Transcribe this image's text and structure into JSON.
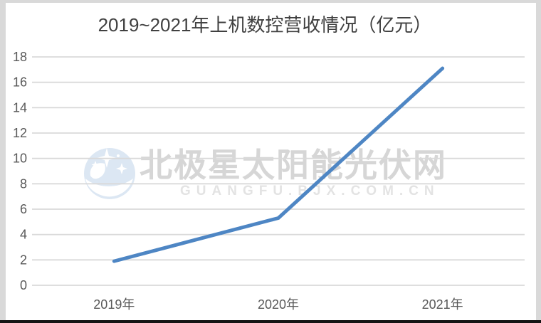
{
  "chart": {
    "title": "2019~2021年上机数控营收情况（亿元）"
  },
  "watermark": {
    "main_text": "北极星太阳能光伏网",
    "sub_text": "GUANGFU.BJX.COM.CN"
  },
  "colors": {
    "title": "#404040",
    "tick": "#595959",
    "grid": "#d9d9d9",
    "line": "#4e86c4",
    "frame": "#d9d9d9",
    "bottom_bar": "#141414",
    "watermark_main": "#d6d6d6",
    "watermark_sub": "#e3e3e3",
    "logo_blue": "#dce7f3"
  },
  "chart_data": {
    "type": "line",
    "title": "2019~2021年上机数控营收情况（亿元）",
    "categories": [
      "2019年",
      "2020年",
      "2021年"
    ],
    "values": [
      1.9,
      5.3,
      17.1
    ],
    "xlabel": "",
    "ylabel": "",
    "ylim": [
      0,
      18
    ],
    "ytick_step": 2,
    "grid": true,
    "legend": false,
    "line_color": "#4e86c4"
  }
}
